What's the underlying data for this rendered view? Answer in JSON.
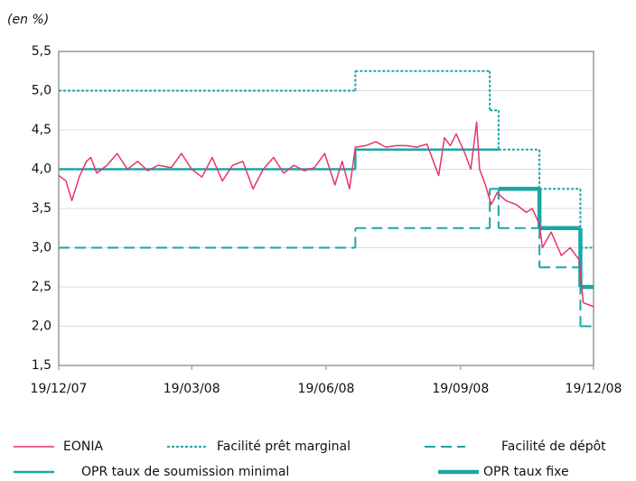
{
  "chart_data": {
    "type": "line",
    "ylabel": "(en %)",
    "xlim": [
      "2007-12-19",
      "2008-12-19"
    ],
    "xticks": [
      {
        "value": "2007-12-19",
        "label": "19/12/07"
      },
      {
        "value": "2008-03-19",
        "label": "19/03/08"
      },
      {
        "value": "2008-06-19",
        "label": "19/06/08"
      },
      {
        "value": "2008-09-19",
        "label": "19/09/08"
      },
      {
        "value": "2008-12-19",
        "label": "19/12/08"
      }
    ],
    "ylim": [
      1.5,
      5.5
    ],
    "yticks": [
      {
        "value": 1.5,
        "label": "1,5"
      },
      {
        "value": 2.0,
        "label": "2,0"
      },
      {
        "value": 2.5,
        "label": "2,5"
      },
      {
        "value": 3.0,
        "label": "3,0"
      },
      {
        "value": 3.5,
        "label": "3,5"
      },
      {
        "value": 4.0,
        "label": "4,0"
      },
      {
        "value": 4.5,
        "label": "4,5"
      },
      {
        "value": 5.0,
        "label": "5,0"
      },
      {
        "value": 5.5,
        "label": "5,5"
      }
    ],
    "grid": true,
    "series": [
      {
        "name": "EONIA",
        "color": "#e8336b",
        "dash": "solid",
        "width": 1.5,
        "step": false,
        "x": [
          "2007-12-19",
          "2007-12-24",
          "2007-12-28",
          "2008-01-02",
          "2008-01-07",
          "2008-01-10",
          "2008-01-14",
          "2008-01-21",
          "2008-01-28",
          "2008-02-04",
          "2008-02-11",
          "2008-02-18",
          "2008-02-25",
          "2008-03-05",
          "2008-03-12",
          "2008-03-19",
          "2008-03-26",
          "2008-04-02",
          "2008-04-09",
          "2008-04-16",
          "2008-04-23",
          "2008-04-30",
          "2008-05-07",
          "2008-05-14",
          "2008-05-21",
          "2008-05-28",
          "2008-06-04",
          "2008-06-11",
          "2008-06-18",
          "2008-06-25",
          "2008-06-30",
          "2008-07-05",
          "2008-07-09",
          "2008-07-16",
          "2008-07-23",
          "2008-07-30",
          "2008-08-06",
          "2008-08-13",
          "2008-08-20",
          "2008-08-27",
          "2008-09-04",
          "2008-09-08",
          "2008-09-12",
          "2008-09-16",
          "2008-09-22",
          "2008-09-26",
          "2008-09-30",
          "2008-10-02",
          "2008-10-06",
          "2008-10-10",
          "2008-10-14",
          "2008-10-20",
          "2008-10-27",
          "2008-11-03",
          "2008-11-07",
          "2008-11-12",
          "2008-11-14",
          "2008-11-20",
          "2008-11-27",
          "2008-12-03",
          "2008-12-09",
          "2008-12-12",
          "2008-12-19"
        ],
        "values": [
          3.92,
          3.85,
          3.6,
          3.9,
          4.1,
          4.15,
          3.95,
          4.05,
          4.2,
          4.0,
          4.1,
          3.98,
          4.05,
          4.02,
          4.2,
          4.0,
          3.9,
          4.15,
          3.85,
          4.05,
          4.1,
          3.75,
          4.0,
          4.15,
          3.95,
          4.05,
          3.98,
          4.02,
          4.2,
          3.8,
          4.1,
          3.75,
          4.28,
          4.3,
          4.35,
          4.28,
          4.3,
          4.3,
          4.28,
          4.32,
          3.92,
          4.4,
          4.3,
          4.45,
          4.2,
          4.0,
          4.6,
          4.0,
          3.8,
          3.55,
          3.7,
          3.6,
          3.55,
          3.45,
          3.5,
          3.3,
          3.0,
          3.2,
          2.9,
          3.0,
          2.85,
          2.3,
          2.25
        ]
      },
      {
        "name": "Facilité prêt marginal",
        "color": "#1aa6a6",
        "dash": "dotted",
        "width": 2,
        "step": true,
        "x": [
          "2007-12-19",
          "2008-07-09",
          "2008-10-09",
          "2008-10-15",
          "2008-11-12",
          "2008-12-10",
          "2008-12-19"
        ],
        "values": [
          5.0,
          5.25,
          4.75,
          4.25,
          3.75,
          3.0,
          3.0
        ]
      },
      {
        "name": "Facilité de dépôt",
        "color": "#1aa6a6",
        "dash": "dashed",
        "width": 2,
        "step": true,
        "x": [
          "2007-12-19",
          "2008-07-09",
          "2008-10-09",
          "2008-10-15",
          "2008-11-12",
          "2008-12-10",
          "2008-12-19"
        ],
        "values": [
          3.0,
          3.25,
          3.75,
          3.25,
          2.75,
          2.0,
          2.0
        ]
      },
      {
        "name": "OPR taux de soumission minimal",
        "color": "#1aa6a6",
        "dash": "solid",
        "width": 2.5,
        "step": true,
        "x": [
          "2007-12-19",
          "2008-07-09",
          "2008-10-15"
        ],
        "values": [
          4.0,
          4.25,
          4.25
        ]
      },
      {
        "name": "OPR taux fixe",
        "color": "#1aa6a6",
        "dash": "solid",
        "width": 4.5,
        "step": true,
        "x": [
          "2008-10-15",
          "2008-11-12",
          "2008-12-10",
          "2008-12-19"
        ],
        "values": [
          3.75,
          3.25,
          2.5,
          2.5
        ]
      }
    ]
  }
}
